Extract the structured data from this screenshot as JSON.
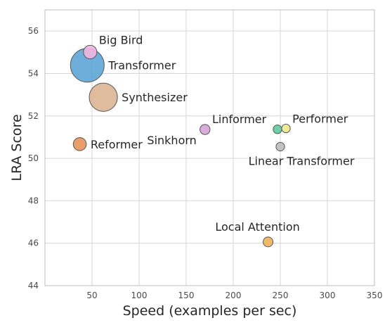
{
  "chart_data": {
    "type": "scatter",
    "title": "",
    "xlabel": "Speed (examples per sec)",
    "ylabel": "LRA Score",
    "xlim": [
      0,
      350
    ],
    "ylim": [
      44,
      57
    ],
    "xticks": [
      50,
      100,
      150,
      200,
      250,
      300,
      350
    ],
    "yticks": [
      44,
      46,
      48,
      50,
      52,
      54,
      56
    ],
    "grid": true,
    "legend": "none",
    "size_encoding": "memory footprint (bubble area)",
    "points": [
      {
        "label": "Transformer",
        "x": 45,
        "y": 54.39,
        "size": 10.0,
        "color": "#5da5d6",
        "label_side": "right"
      },
      {
        "label": "Synthesizer",
        "x": 62,
        "y": 52.88,
        "size": 7.0,
        "color": "#dcb593",
        "label_side": "right"
      },
      {
        "label": "Big Bird",
        "x": 48,
        "y": 55.01,
        "size": 1.6,
        "color": "#f2b6e0",
        "label_side": "upper-right"
      },
      {
        "label": "Reformer",
        "x": 37,
        "y": 50.67,
        "size": 1.5,
        "color": "#e8955a",
        "label_side": "right"
      },
      {
        "label": "Linformer",
        "x": 170,
        "y": 51.36,
        "size": 0.9,
        "color": "#d6a3d8",
        "label_side": "upper-right"
      },
      {
        "label": "Sinkhorn",
        "x": 170,
        "y": 51.36,
        "size": 0,
        "color": "#d6a3d8",
        "label_side": "lower-left"
      },
      {
        "label": "Performer",
        "x": 256,
        "y": 51.41,
        "size": 0.65,
        "color": "#f2ea8c",
        "label_side": "upper-right"
      },
      {
        "label": "",
        "x": 247,
        "y": 51.37,
        "size": 0.65,
        "color": "#5fc9a2",
        "label_side": "none"
      },
      {
        "label": "Linear Transformer",
        "x": 250,
        "y": 50.55,
        "size": 0.65,
        "color": "#bdbdbd",
        "label_side": "below"
      },
      {
        "label": "Local Attention",
        "x": 237,
        "y": 46.06,
        "size": 0.85,
        "color": "#f2b35c",
        "label_side": "above"
      }
    ]
  }
}
